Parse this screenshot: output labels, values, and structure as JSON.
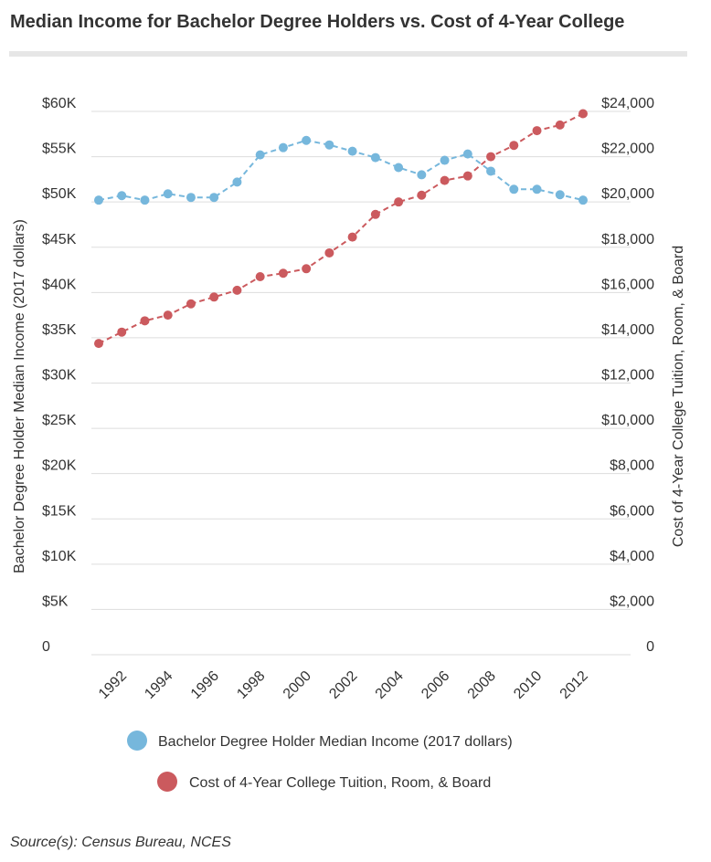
{
  "title": "Median Income for Bachelor Degree Holders vs. Cost of 4-Year College",
  "source": "Source(s): Census Bureau, NCES",
  "colors": {
    "income": "#76b7dc",
    "cost": "#cb5a5e",
    "grid": "#dddddd",
    "text": "#333333"
  },
  "chart_data": {
    "type": "line",
    "x": [
      1991,
      1992,
      1993,
      1994,
      1995,
      1996,
      1997,
      1998,
      1999,
      2000,
      2001,
      2002,
      2003,
      2004,
      2005,
      2006,
      2007,
      2008,
      2009,
      2010,
      2011,
      2012
    ],
    "x_tick_labels": [
      "1992",
      "1994",
      "1996",
      "1998",
      "2000",
      "2002",
      "2004",
      "2006",
      "2008",
      "2010",
      "2012"
    ],
    "y_left": {
      "label": "Bachelor Degree Holder Median Income (2017 dollars)",
      "range": [
        0,
        60000
      ],
      "tick_values": [
        0,
        5000,
        10000,
        15000,
        20000,
        25000,
        30000,
        35000,
        40000,
        45000,
        50000,
        55000,
        60000
      ],
      "tick_labels": [
        "0",
        "$5K",
        "$10K",
        "$15K",
        "$20K",
        "$25K",
        "$30K",
        "$35K",
        "$40K",
        "$45K",
        "$50K",
        "$55K",
        "$60K"
      ]
    },
    "y_right": {
      "label": "Cost of 4-Year College Tuition, Room, & Board",
      "range": [
        0,
        24000
      ],
      "tick_values": [
        0,
        2000,
        4000,
        6000,
        8000,
        10000,
        12000,
        14000,
        16000,
        18000,
        20000,
        22000,
        24000
      ],
      "tick_labels": [
        "0",
        "$2,000",
        "$4,000",
        "$6,000",
        "$8,000",
        "$10,000",
        "$12,000",
        "$14,000",
        "$16,000",
        "$18,000",
        "$20,000",
        "$22,000",
        "$24,000"
      ]
    },
    "grid": true,
    "legend_position": "bottom",
    "series": [
      {
        "name": "Bachelor Degree Holder Median Income (2017 dollars)",
        "axis": "left",
        "values": [
          50200,
          50700,
          50200,
          50900,
          50500,
          50500,
          52200,
          55200,
          56000,
          56800,
          56300,
          55600,
          54900,
          53800,
          53000,
          54600,
          55300,
          53400,
          51400,
          51400,
          50800,
          50200
        ]
      },
      {
        "name": "Cost of 4-Year College Tuition, Room, & Board",
        "axis": "right",
        "values": [
          13750,
          14250,
          14750,
          15000,
          15500,
          15800,
          16100,
          16700,
          16850,
          17050,
          17750,
          18450,
          19450,
          20000,
          20300,
          20950,
          21150,
          22000,
          22500,
          23150,
          23400,
          23900
        ]
      }
    ]
  }
}
